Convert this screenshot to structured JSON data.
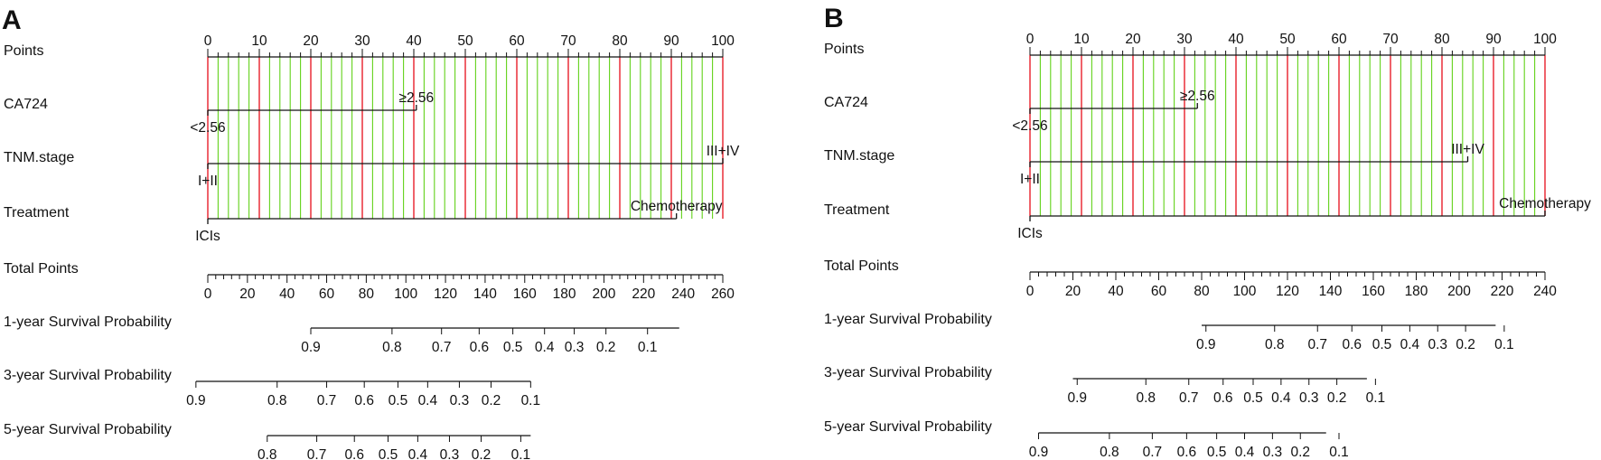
{
  "colors": {
    "major_grid": "#e8202a",
    "minor_grid": "#62d21a",
    "axis": "#111111",
    "background": "#ffffff"
  },
  "chart_data": [
    {
      "type": "nomogram",
      "panel_label": "A",
      "rows": [
        {
          "label": "Points",
          "kind": "axis",
          "range": [
            0,
            100
          ],
          "labels": [
            "0",
            "10",
            "20",
            "30",
            "40",
            "50",
            "60",
            "70",
            "80",
            "90",
            "100"
          ]
        },
        {
          "label": "CA724",
          "kind": "variable",
          "levels": [
            {
              "name": "<2.56",
              "points": 0
            },
            {
              "name": "≥2.56",
              "points": 40.5
            }
          ]
        },
        {
          "label": "TNM.stage",
          "kind": "variable",
          "levels": [
            {
              "name": "I+II",
              "points": 0
            },
            {
              "name": "III+IV",
              "points": 100
            }
          ]
        },
        {
          "label": "Treatment",
          "kind": "variable",
          "levels": [
            {
              "name": "ICIs",
              "points": 0
            },
            {
              "name": "Chemotherapy",
              "points": 91
            }
          ]
        },
        {
          "label": "Total Points",
          "kind": "axis",
          "range": [
            0,
            260
          ],
          "labels": [
            "0",
            "20",
            "40",
            "60",
            "80",
            "100",
            "120",
            "140",
            "160",
            "180",
            "200",
            "220",
            "240",
            "260"
          ]
        },
        {
          "label": "1-year Survival Probability",
          "kind": "probability",
          "total_points_span": [
            52,
            238
          ],
          "ticks": [
            {
              "label": "0.9",
              "total": 52
            },
            {
              "label": "0.8",
              "total": 93
            },
            {
              "label": "0.7",
              "total": 118
            },
            {
              "label": "0.6",
              "total": 137
            },
            {
              "label": "0.5",
              "total": 154
            },
            {
              "label": "0.4",
              "total": 170
            },
            {
              "label": "0.3",
              "total": 185
            },
            {
              "label": "0.2",
              "total": 201
            },
            {
              "label": "0.1",
              "total": 222
            }
          ]
        },
        {
          "label": "3-year Survival Probability",
          "kind": "probability",
          "total_points_span": [
            -6,
            163
          ],
          "ticks": [
            {
              "label": "0.9",
              "total": -6
            },
            {
              "label": "0.8",
              "total": 35
            },
            {
              "label": "0.7",
              "total": 60
            },
            {
              "label": "0.6",
              "total": 79
            },
            {
              "label": "0.5",
              "total": 96
            },
            {
              "label": "0.4",
              "total": 111
            },
            {
              "label": "0.3",
              "total": 127
            },
            {
              "label": "0.2",
              "total": 143
            },
            {
              "label": "0.1",
              "total": 163
            }
          ]
        },
        {
          "label": "5-year Survival Probability",
          "kind": "probability",
          "total_points_span": [
            30,
            163
          ],
          "ticks": [
            {
              "label": "0.8",
              "total": 30
            },
            {
              "label": "0.7",
              "total": 55
            },
            {
              "label": "0.6",
              "total": 74
            },
            {
              "label": "0.5",
              "total": 91
            },
            {
              "label": "0.4",
              "total": 106
            },
            {
              "label": "0.3",
              "total": 122
            },
            {
              "label": "0.2",
              "total": 138
            },
            {
              "label": "0.1",
              "total": 158
            }
          ]
        }
      ]
    },
    {
      "type": "nomogram",
      "panel_label": "B",
      "rows": [
        {
          "label": "Points",
          "kind": "axis",
          "range": [
            0,
            100
          ],
          "labels": [
            "0",
            "10",
            "20",
            "30",
            "40",
            "50",
            "60",
            "70",
            "80",
            "90",
            "100"
          ]
        },
        {
          "label": "CA724",
          "kind": "variable",
          "levels": [
            {
              "name": "<2.56",
              "points": 0
            },
            {
              "name": "≥2.56",
              "points": 32.5
            }
          ]
        },
        {
          "label": "TNM.stage",
          "kind": "variable",
          "levels": [
            {
              "name": "I+II",
              "points": 0
            },
            {
              "name": "III+IV",
              "points": 85
            }
          ]
        },
        {
          "label": "Treatment",
          "kind": "variable",
          "levels": [
            {
              "name": "ICIs",
              "points": 0
            },
            {
              "name": "Chemotherapy",
              "points": 100
            }
          ]
        },
        {
          "label": "Total Points",
          "kind": "axis",
          "range": [
            0,
            240
          ],
          "labels": [
            "0",
            "20",
            "40",
            "60",
            "80",
            "100",
            "120",
            "140",
            "160",
            "180",
            "200",
            "220",
            "240"
          ]
        },
        {
          "label": "1-year Survival Probability",
          "kind": "probability",
          "total_points_span": [
            80,
            217
          ],
          "ticks": [
            {
              "label": "0.9",
              "total": 82
            },
            {
              "label": "0.8",
              "total": 114
            },
            {
              "label": "0.7",
              "total": 134
            },
            {
              "label": "0.6",
              "total": 150
            },
            {
              "label": "0.5",
              "total": 164
            },
            {
              "label": "0.4",
              "total": 177
            },
            {
              "label": "0.3",
              "total": 190
            },
            {
              "label": "0.2",
              "total": 203
            },
            {
              "label": "0.1",
              "total": 221
            }
          ]
        },
        {
          "label": "3-year Survival Probability",
          "kind": "probability",
          "total_points_span": [
            20,
            157
          ],
          "ticks": [
            {
              "label": "0.9",
              "total": 22
            },
            {
              "label": "0.8",
              "total": 54
            },
            {
              "label": "0.7",
              "total": 74
            },
            {
              "label": "0.6",
              "total": 90
            },
            {
              "label": "0.5",
              "total": 104
            },
            {
              "label": "0.4",
              "total": 117
            },
            {
              "label": "0.3",
              "total": 130
            },
            {
              "label": "0.2",
              "total": 143
            },
            {
              "label": "0.1",
              "total": 161
            }
          ]
        },
        {
          "label": "5-year Survival Probability",
          "kind": "probability",
          "total_points_span": [
            4,
            138
          ],
          "ticks": [
            {
              "label": "0.9",
              "total": 4
            },
            {
              "label": "0.8",
              "total": 37
            },
            {
              "label": "0.7",
              "total": 57
            },
            {
              "label": "0.6",
              "total": 73
            },
            {
              "label": "0.5",
              "total": 87
            },
            {
              "label": "0.4",
              "total": 100
            },
            {
              "label": "0.3",
              "total": 113
            },
            {
              "label": "0.2",
              "total": 126
            },
            {
              "label": "0.1",
              "total": 144
            }
          ]
        }
      ]
    }
  ]
}
